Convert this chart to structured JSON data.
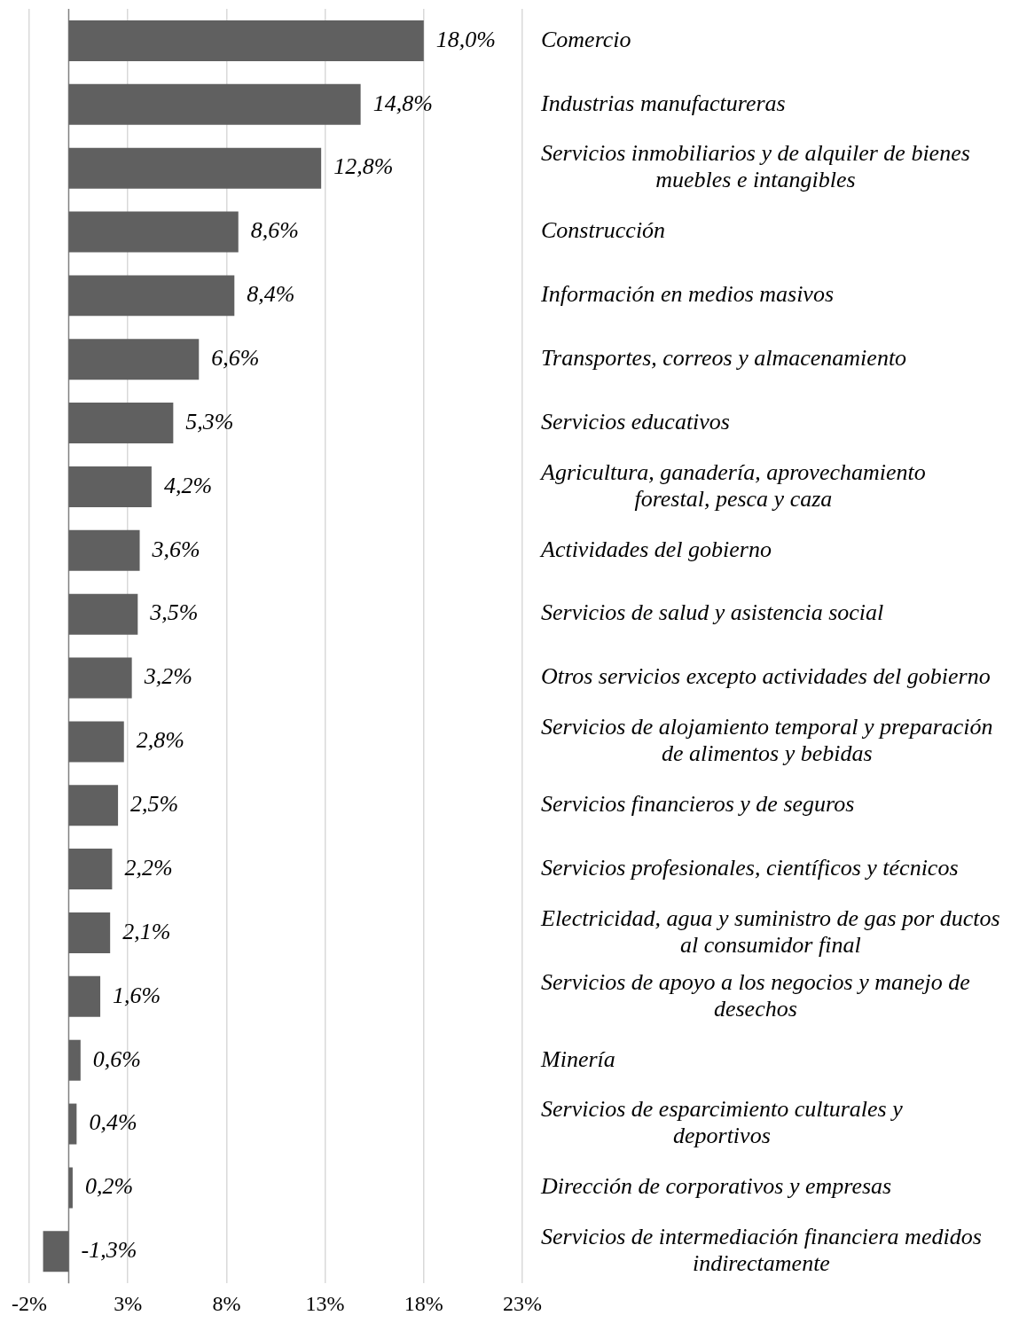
{
  "chart_data": {
    "type": "bar",
    "orientation": "horizontal",
    "categories": [
      "Comercio",
      "Industrias manufactureras",
      "Servicios inmobiliarios y de alquiler de bienes muebles e intangibles",
      "Construcción",
      "Información en medios masivos",
      "Transportes, correos y almacenamiento",
      "Servicios educativos",
      "Agricultura, ganadería, aprovechamiento forestal, pesca y caza",
      "Actividades del gobierno",
      "Servicios de salud y asistencia social",
      "Otros servicios excepto actividades del gobierno",
      "Servicios de alojamiento temporal y preparación de alimentos y bebidas",
      "Servicios financieros y de seguros",
      "Servicios profesionales, científicos y técnicos",
      "Electricidad, agua y suministro de gas por ductos al consumidor final",
      "Servicios de apoyo a los negocios y manejo de desechos",
      "Minería",
      "Servicios de esparcimiento culturales y deportivos",
      "Dirección de corporativos y empresas",
      "Servicios de intermediación financiera medidos indirectamente"
    ],
    "values": [
      18.0,
      14.8,
      12.8,
      8.6,
      8.4,
      6.6,
      5.3,
      4.2,
      3.6,
      3.5,
      3.2,
      2.8,
      2.5,
      2.2,
      2.1,
      1.6,
      0.6,
      0.4,
      0.2,
      -1.3
    ],
    "value_labels": [
      "18,0%",
      "14,8%",
      "12,8%",
      "8,6%",
      "8,4%",
      "6,6%",
      "5,3%",
      "4,2%",
      "3,6%",
      "3,5%",
      "3,2%",
      "2,8%",
      "2,5%",
      "2,2%",
      "2,1%",
      "1,6%",
      "0,6%",
      "0,4%",
      "0,2%",
      "-1,3%"
    ],
    "color": "#606060",
    "xlim": [
      -2,
      23
    ],
    "xticks": [
      {
        "value": -2,
        "label": "-2%"
      },
      {
        "value": 3,
        "label": "3%"
      },
      {
        "value": 8,
        "label": "8%"
      },
      {
        "value": 13,
        "label": "13%"
      },
      {
        "value": 18,
        "label": "18%"
      },
      {
        "value": 23,
        "label": "23%"
      }
    ],
    "grid": "x",
    "legend": false
  }
}
